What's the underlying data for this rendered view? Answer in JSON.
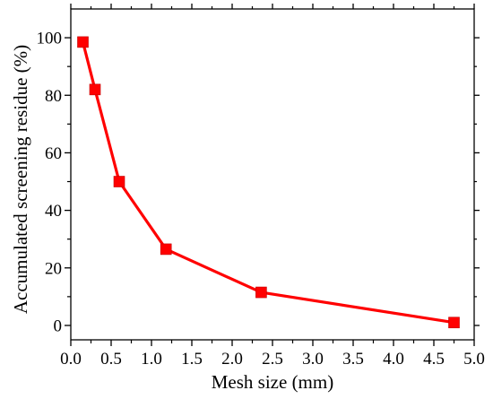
{
  "chart_data": {
    "type": "line",
    "title": "",
    "xlabel": "Mesh size (mm)",
    "ylabel": "Accumulated screening residue (%)",
    "xlim": [
      0.0,
      5.0
    ],
    "ylim": [
      -5,
      110
    ],
    "x_ticks": [
      0.0,
      0.5,
      1.0,
      1.5,
      2.0,
      2.5,
      3.0,
      3.5,
      4.0,
      4.5,
      5.0
    ],
    "x_tick_labels": [
      "0.0",
      "0.5",
      "1.0",
      "1.5",
      "2.0",
      "2.5",
      "3.0",
      "3.5",
      "4.0",
      "4.5",
      "5.0"
    ],
    "y_ticks": [
      0,
      20,
      40,
      60,
      80,
      100
    ],
    "y_tick_labels": [
      "0",
      "20",
      "40",
      "60",
      "80",
      "100"
    ],
    "grid": false,
    "legend": "none",
    "color": "#ff0000",
    "marker": "square",
    "series": [
      {
        "x": [
          0.15,
          0.3,
          0.6,
          1.18,
          2.36,
          4.75
        ],
        "y": [
          98.5,
          82,
          50,
          26.5,
          11.5,
          1.0
        ]
      }
    ]
  }
}
